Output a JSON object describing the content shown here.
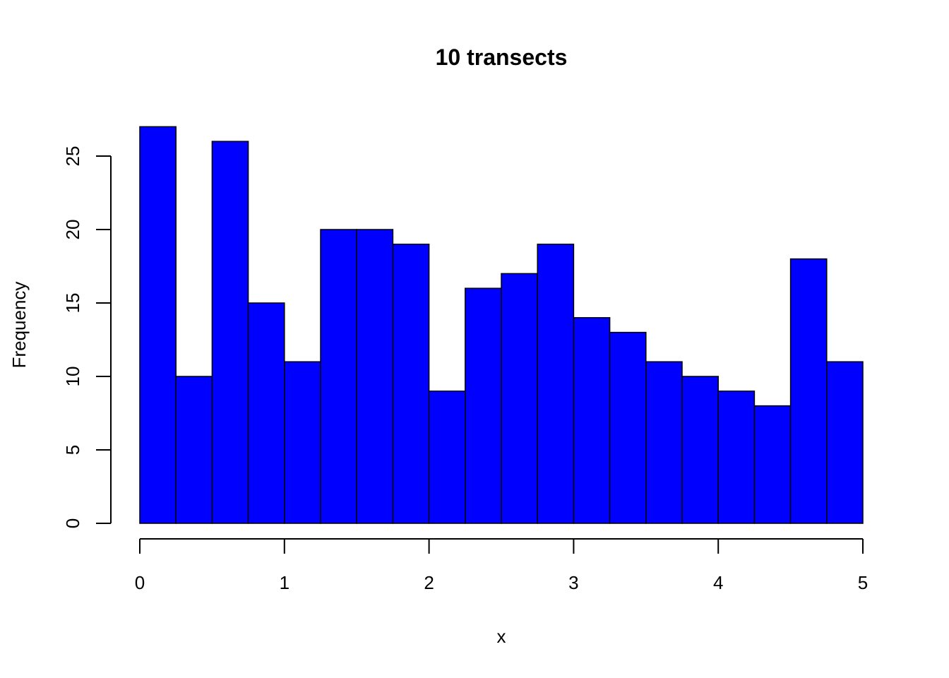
{
  "chart_data": {
    "type": "bar",
    "title": "10 transects",
    "xlabel": "x",
    "ylabel": "Frequency",
    "bin_edges": [
      0,
      0.25,
      0.5,
      0.75,
      1,
      1.25,
      1.5,
      1.75,
      2,
      2.25,
      2.5,
      2.75,
      3,
      3.25,
      3.5,
      3.75,
      4,
      4.25,
      4.5,
      4.75,
      5
    ],
    "values": [
      27,
      10,
      26,
      15,
      11,
      20,
      20,
      19,
      9,
      16,
      17,
      19,
      14,
      13,
      11,
      10,
      9,
      8,
      18,
      11
    ],
    "xlim": [
      0,
      5
    ],
    "ylim": [
      0,
      27
    ],
    "x_ticks": [
      0,
      1,
      2,
      3,
      4,
      5
    ],
    "x_tick_labels": [
      "0",
      "1",
      "2",
      "3",
      "4",
      "5"
    ],
    "y_ticks": [
      0,
      5,
      10,
      15,
      20,
      25
    ],
    "y_tick_labels": [
      "0",
      "5",
      "10",
      "15",
      "20",
      "25"
    ],
    "bar_color": "#0000ff",
    "border_color": "#000000",
    "grid": false,
    "legend": "none"
  }
}
